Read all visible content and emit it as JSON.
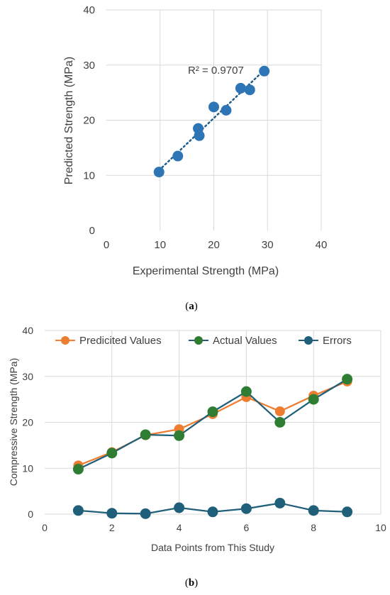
{
  "colors": {
    "scatter_points": "#2e75b6",
    "trendline": "#1f5e8c",
    "predicted": "#ed7d31",
    "actual": "#2e7d32",
    "errors": "#1f5f7a",
    "grid": "#d9d9d9",
    "text": "#404040"
  },
  "chart_data": [
    {
      "type": "scatter",
      "xlabel": "Experimental Strength (MPa)",
      "ylabel": "Predicted Strength (MPa)",
      "xlim": [
        0,
        40
      ],
      "ylim": [
        0,
        40
      ],
      "xticks": [
        "0",
        "10",
        "20",
        "30",
        "40"
      ],
      "yticks": [
        "0",
        "10",
        "20",
        "30",
        "40"
      ],
      "grid": true,
      "trendline": {
        "style": "dotted",
        "r2_label": "R² = 0.9707"
      },
      "points": [
        [
          9.8,
          10.6
        ],
        [
          13.3,
          13.5
        ],
        [
          17.1,
          18.5
        ],
        [
          17.3,
          17.2
        ],
        [
          20.0,
          22.4
        ],
        [
          22.3,
          21.8
        ],
        [
          25.0,
          25.8
        ],
        [
          26.7,
          25.5
        ],
        [
          29.4,
          28.9
        ]
      ],
      "caption": "a"
    },
    {
      "type": "line",
      "xlabel": "Data Points from This Study",
      "ylabel": "Compressive Strength (MPa)",
      "xlim": [
        0,
        10
      ],
      "ylim": [
        0,
        40
      ],
      "xticks": [
        "0",
        "2",
        "4",
        "6",
        "8",
        "10"
      ],
      "yticks": [
        "0",
        "10",
        "20",
        "30",
        "40"
      ],
      "grid": true,
      "legend": "top",
      "x": [
        1,
        2,
        3,
        4,
        5,
        6,
        7,
        8,
        9
      ],
      "series": [
        {
          "name": "Predicited Values",
          "values": [
            10.6,
            13.5,
            17.2,
            18.5,
            21.8,
            25.5,
            22.4,
            25.8,
            28.9
          ]
        },
        {
          "name": "Actual Values",
          "values": [
            9.8,
            13.3,
            17.3,
            17.1,
            22.3,
            26.7,
            20.0,
            25.0,
            29.4
          ]
        },
        {
          "name": "Errors",
          "values": [
            0.8,
            0.2,
            0.1,
            1.4,
            0.5,
            1.2,
            2.4,
            0.8,
            0.5
          ]
        }
      ],
      "caption": "b"
    }
  ]
}
